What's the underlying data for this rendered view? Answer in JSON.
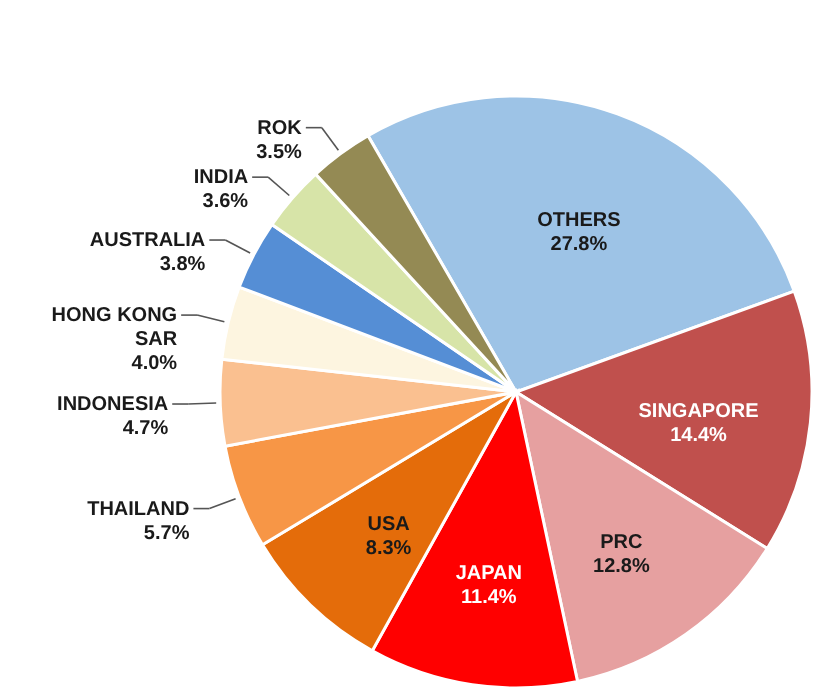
{
  "chart_data": {
    "type": "pie",
    "categories": [
      "OTHERS",
      "SINGAPORE",
      "PRC",
      "JAPAN",
      "USA",
      "THAILAND",
      "INDONESIA",
      "HONG KONG SAR",
      "AUSTRALIA",
      "INDIA",
      "ROK"
    ],
    "values": [
      27.8,
      14.4,
      12.8,
      11.4,
      8.3,
      5.7,
      4.7,
      4.0,
      3.8,
      3.6,
      3.5
    ],
    "value_labels": [
      "27.8%",
      "14.4%",
      "12.8%",
      "11.4%",
      "8.3%",
      "5.7%",
      "4.7%",
      "4.0%",
      "3.8%",
      "3.6%",
      "3.5%"
    ],
    "colors": [
      "#9dc3e6",
      "#c0504d",
      "#e6a0a0",
      "#ff0000",
      "#e46c0a",
      "#f79646",
      "#fac090",
      "#fdf5e0",
      "#558ed5",
      "#d7e4a8",
      "#948a54"
    ]
  }
}
